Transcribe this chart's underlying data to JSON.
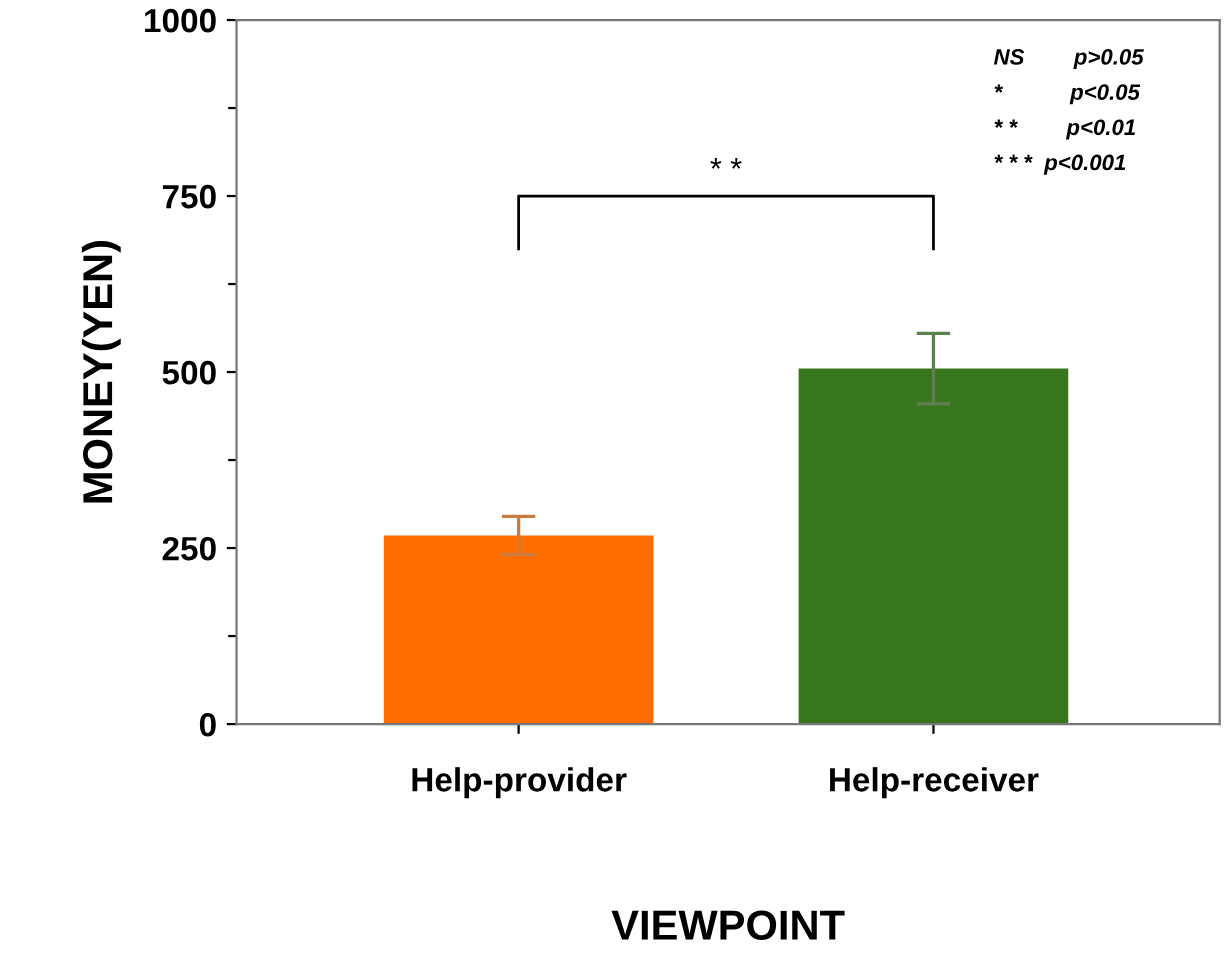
{
  "chart_data": {
    "type": "bar",
    "categories": [
      "Help-provider",
      "Help-receiver"
    ],
    "values": [
      268,
      505
    ],
    "errors": [
      27,
      50
    ],
    "colors": [
      "#ff6d00",
      "#38761d"
    ],
    "xlabel": "VIEWPOINT",
    "ylabel": "MONEY(YEN)",
    "ylim": [
      0,
      1000
    ],
    "yticks": [
      0,
      {
        "value": 125,
        "label": null
      },
      250,
      {
        "value": 375,
        "label": null
      },
      500,
      {
        "value": 625,
        "label": null
      },
      750,
      {
        "value": 875,
        "label": null
      },
      1000
    ],
    "annotations": [
      "* *",
      "NS        p>0.05",
      "*           p<0.05",
      "* *        p<0.01",
      "* * *  p<0.001"
    ],
    "grid": false,
    "legend": false
  }
}
